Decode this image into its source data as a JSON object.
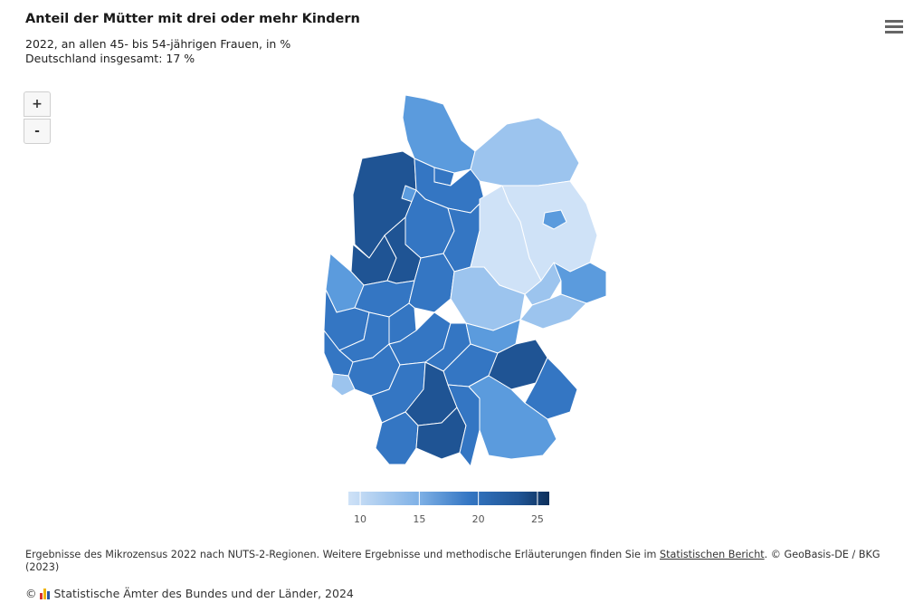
{
  "title": "Anteil der Mütter mit drei oder mehr Kindern",
  "subtitle_line1": "2022, an allen 45- bis 54-jährigen Frauen, in %",
  "subtitle_line2": "Deutschland insgesamt: 17 %",
  "zoom": {
    "in_label": "+",
    "out_label": "-"
  },
  "menu_icon": "hamburger-menu-icon",
  "legend": {
    "min": 9,
    "max": 26,
    "ticks": [
      "10",
      "15",
      "20",
      "25"
    ],
    "tick_values": [
      10,
      15,
      20,
      25
    ],
    "colors": [
      "#cfe2f7",
      "#9cc4ee",
      "#5b9bdd",
      "#3476c3",
      "#1f5494",
      "#0d2f5a"
    ]
  },
  "footnote_pre": "Ergebnisse des Mikrozensus 2022 nach NUTS-2-Regionen. Weitere Ergebnisse und methodische Erläuterungen finden Sie im ",
  "footnote_link": "Statistischen Bericht",
  "footnote_post": ". © GeoBasis-DE / BKG (2023)",
  "source_copyright": "©",
  "source_text": "Statistische Ämter des Bundes und der Länder, 2024",
  "colors": {
    "logo_red": "#d9322b",
    "logo_yellow": "#f0b400",
    "logo_blue": "#2c5aa0"
  }
}
